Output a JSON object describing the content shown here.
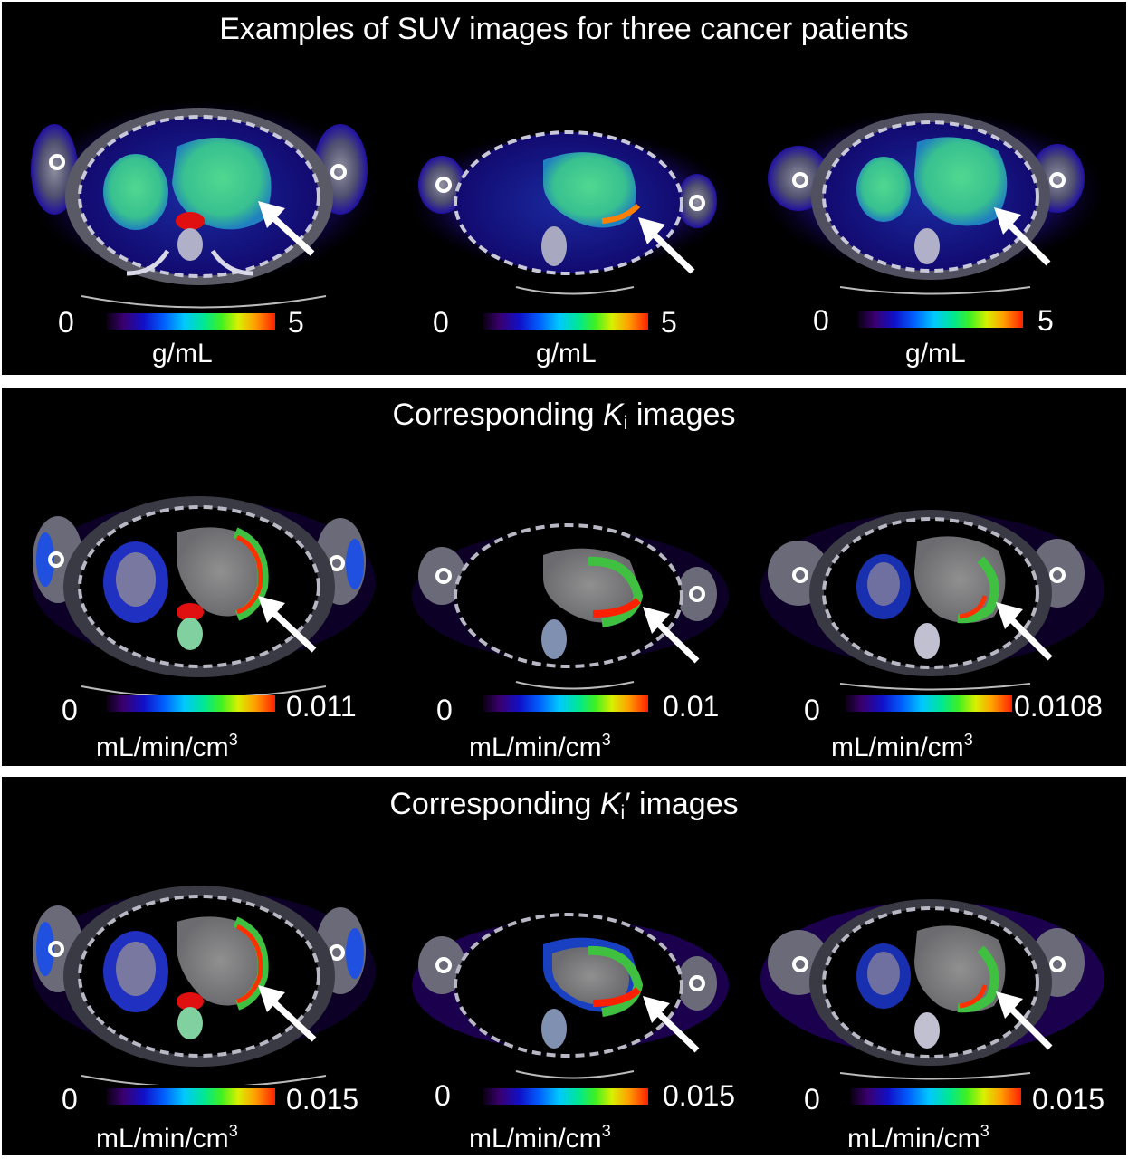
{
  "panels": [
    {
      "title": "Examples of SUV images for three cancer patients",
      "colorbars": [
        {
          "min": "0",
          "max": "5",
          "unit": "g/mL"
        },
        {
          "min": "0",
          "max": "5",
          "unit": "g/mL"
        },
        {
          "min": "0",
          "max": "5",
          "unit": "g/mL"
        }
      ]
    },
    {
      "title_prefix": "Corresponding ",
      "title_symbol": "K",
      "title_subscript": "i",
      "title_suffix": " images",
      "colorbars": [
        {
          "min": "0",
          "max": "0.011",
          "unit": "mL/min/cm",
          "unit_sup": "3"
        },
        {
          "min": "0",
          "max": "0.01",
          "unit": "mL/min/cm",
          "unit_sup": "3"
        },
        {
          "min": "0",
          "max": "0.0108",
          "unit": "mL/min/cm",
          "unit_sup": "3"
        }
      ]
    },
    {
      "title_prefix": "Corresponding ",
      "title_symbol": "K",
      "title_subscript": "i",
      "title_suffix": "′ images",
      "colorbars": [
        {
          "min": "0",
          "max": "0.015",
          "unit": "mL/min/cm",
          "unit_sup": "3"
        },
        {
          "min": "0",
          "max": "0.015",
          "unit": "mL/min/cm",
          "unit_sup": "3"
        },
        {
          "min": "0",
          "max": "0.015",
          "unit": "mL/min/cm",
          "unit_sup": "3"
        }
      ]
    }
  ],
  "colors": {
    "background": "#000000",
    "text": "#ffffff",
    "arrow": "#ffffff",
    "colormap": [
      "#0a0012",
      "#3a0070",
      "#1010c8",
      "#0060ff",
      "#00c8ff",
      "#00e890",
      "#40f020",
      "#d8f000",
      "#ffa000",
      "#ff2000"
    ]
  },
  "icons": {
    "arrow": "white-arrow-icon"
  }
}
